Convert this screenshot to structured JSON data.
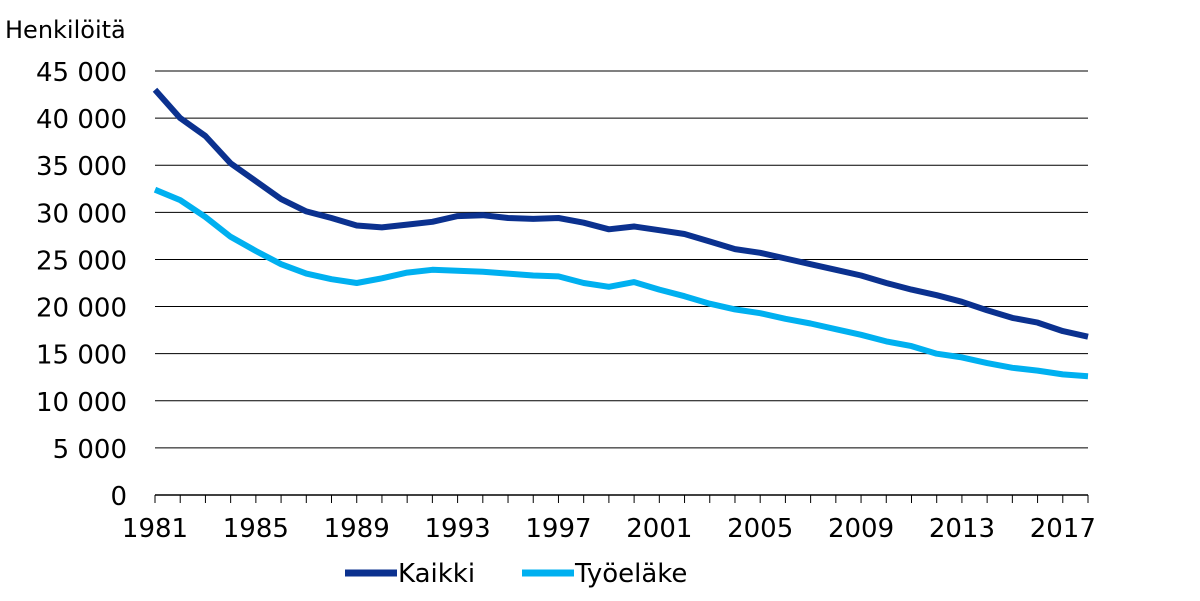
{
  "chart_data": {
    "type": "line",
    "ylabel": "Henkilöitä",
    "ylim": [
      0,
      45000
    ],
    "yticks": [
      {
        "value": 0,
        "label": "0"
      },
      {
        "value": 5000,
        "label": "5 000"
      },
      {
        "value": 10000,
        "label": "10 000"
      },
      {
        "value": 15000,
        "label": "15 000"
      },
      {
        "value": 20000,
        "label": "20 000"
      },
      {
        "value": 25000,
        "label": "25 000"
      },
      {
        "value": 30000,
        "label": "30 000"
      },
      {
        "value": 35000,
        "label": "35 000"
      },
      {
        "value": 40000,
        "label": "40 000"
      },
      {
        "value": 45000,
        "label": "45 000"
      }
    ],
    "xticks": [
      {
        "value": 1981,
        "label": "1981"
      },
      {
        "value": 1985,
        "label": "1985"
      },
      {
        "value": 1989,
        "label": "1989"
      },
      {
        "value": 1993,
        "label": "1993"
      },
      {
        "value": 1997,
        "label": "1997"
      },
      {
        "value": 2001,
        "label": "2001"
      },
      {
        "value": 2005,
        "label": "2005"
      },
      {
        "value": 2009,
        "label": "2009"
      },
      {
        "value": 2013,
        "label": "2013"
      },
      {
        "value": 2017,
        "label": "2017"
      }
    ],
    "x": [
      1981,
      1982,
      1983,
      1984,
      1985,
      1986,
      1987,
      1988,
      1989,
      1990,
      1991,
      1992,
      1993,
      1994,
      1995,
      1996,
      1997,
      1998,
      1999,
      2000,
      2001,
      2002,
      2003,
      2004,
      2005,
      2006,
      2007,
      2008,
      2009,
      2010,
      2011,
      2012,
      2013,
      2014,
      2015,
      2016,
      2017,
      2018
    ],
    "grid": "horizontal",
    "legend_position": "bottom",
    "series": [
      {
        "name": "Kaikki",
        "color": "#0b318f",
        "values": [
          43000,
          40000,
          38100,
          35200,
          33300,
          31400,
          30100,
          29400,
          28600,
          28400,
          28700,
          29000,
          29600,
          29700,
          29400,
          29300,
          29400,
          28900,
          28200,
          28500,
          28100,
          27700,
          26900,
          26100,
          25700,
          25100,
          24500,
          23900,
          23300,
          22500,
          21800,
          21200,
          20500,
          19600,
          18800,
          18300,
          17400,
          16800
        ]
      },
      {
        "name": "Työeläke",
        "color": "#00b0f0",
        "values": [
          32400,
          31300,
          29500,
          27400,
          25900,
          24500,
          23500,
          22900,
          22500,
          23000,
          23600,
          23900,
          23800,
          23700,
          23500,
          23300,
          23200,
          22500,
          22100,
          22600,
          21800,
          21100,
          20300,
          19700,
          19300,
          18700,
          18200,
          17600,
          17000,
          16300,
          15800,
          15000,
          14600,
          14000,
          13500,
          13200,
          12800,
          12600
        ]
      }
    ]
  }
}
